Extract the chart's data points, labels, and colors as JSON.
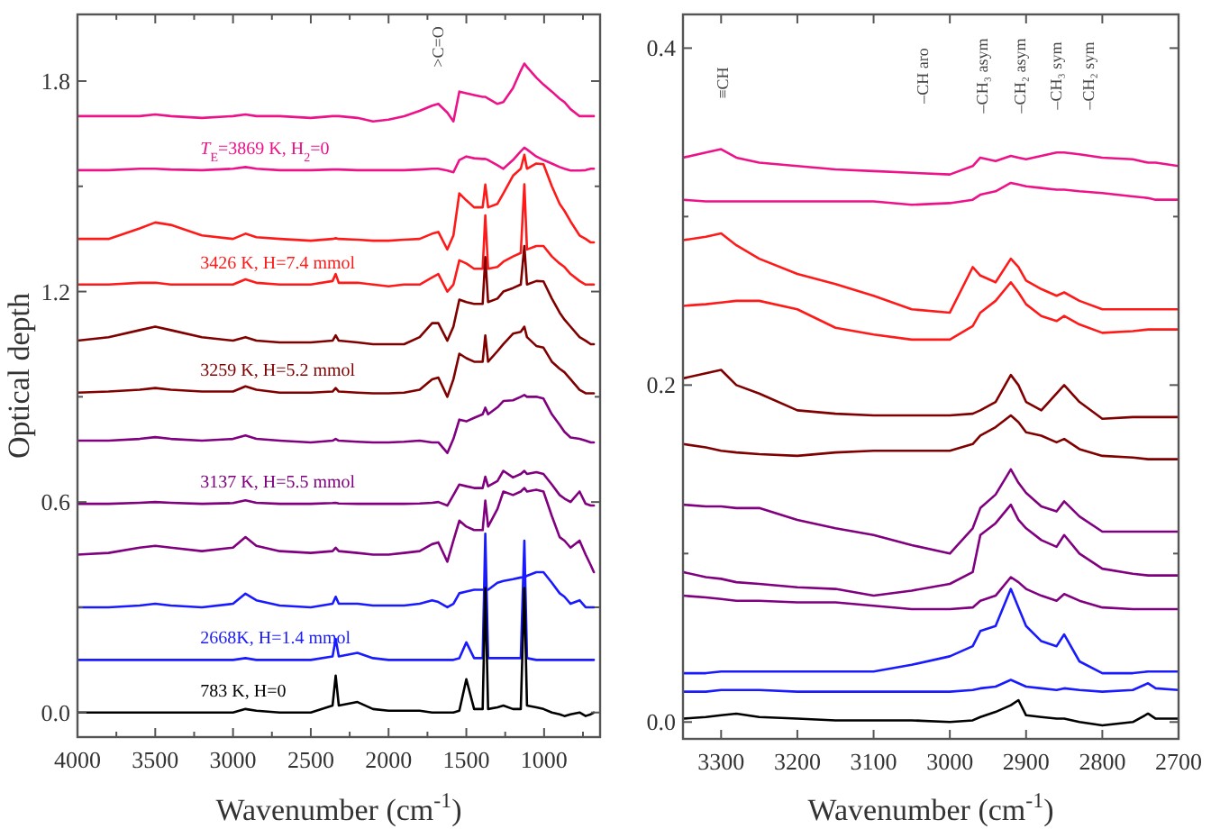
{
  "chart_data": [
    {
      "type": "line",
      "ylabel": "Optical depth",
      "xlabel": "Wavenumber (cm$^{-1}$)",
      "xlim": [
        4000,
        640
      ],
      "ylim": [
        -0.07,
        1.99
      ],
      "xticks": [
        4000,
        {
          "value": 3750,
          "label": null
        },
        3500,
        {
          "value": 3250,
          "label": null
        },
        3000,
        {
          "value": 2750,
          "label": null
        },
        2500,
        {
          "value": 2250,
          "label": null
        },
        2000,
        {
          "value": 1750,
          "label": null
        },
        1500,
        {
          "value": 1250,
          "label": null
        },
        1000,
        {
          "value": 750,
          "label": null
        }
      ],
      "yticks": [
        {
          "value": 0,
          "label": "0.0"
        },
        {
          "value": 0.3,
          "label": null
        },
        {
          "value": 0.6,
          "label": "0.6"
        },
        {
          "value": 0.9,
          "label": null
        },
        {
          "value": 1.2,
          "label": "1.2"
        },
        {
          "value": 1.5,
          "label": null
        },
        {
          "value": 1.8,
          "label": "1.8"
        }
      ],
      "annotations": [
        ">C=O"
      ],
      "x": [
        4000,
        3800,
        3600,
        3500,
        3400,
        3200,
        3000,
        2920,
        2850,
        2700,
        2500,
        2360,
        2340,
        2320,
        2200,
        2100,
        2000,
        1900,
        1800,
        1720,
        1680,
        1622,
        1583,
        1545,
        1500,
        1450,
        1395,
        1378,
        1360,
        1300,
        1262,
        1200,
        1150,
        1127,
        1110,
        1050,
        1004,
        950,
        900,
        869,
        830,
        772,
        733,
        700,
        680
      ],
      "series": [
        {
          "color": "#ee1289",
          "values": [
            1.7,
            1.7,
            1.7,
            1.705,
            1.7,
            1.695,
            1.7,
            1.705,
            1.7,
            1.7,
            1.695,
            1.7,
            1.7,
            1.7,
            1.695,
            1.685,
            1.69,
            1.7,
            1.715,
            1.73,
            1.735,
            1.71,
            1.685,
            1.77,
            1.765,
            1.76,
            1.755,
            1.755,
            1.75,
            1.735,
            1.74,
            1.78,
            1.83,
            1.85,
            1.84,
            1.81,
            1.79,
            1.77,
            1.75,
            1.74,
            1.72,
            1.7,
            1.7,
            1.7,
            1.7
          ]
        },
        {
          "name": "T$_{E}$=3869 K, H$_{2}$=0",
          "color": "#ee1289",
          "values": [
            1.546,
            1.546,
            1.55,
            1.55,
            1.548,
            1.546,
            1.55,
            1.555,
            1.55,
            1.546,
            1.546,
            1.548,
            1.548,
            1.548,
            1.546,
            1.546,
            1.546,
            1.546,
            1.548,
            1.55,
            1.55,
            1.545,
            1.54,
            1.575,
            1.585,
            1.58,
            1.578,
            1.578,
            1.575,
            1.56,
            1.55,
            1.575,
            1.6,
            1.61,
            1.605,
            1.585,
            1.575,
            1.565,
            1.555,
            1.55,
            1.545,
            1.545,
            1.546,
            1.55,
            1.55
          ]
        },
        {
          "color": "#ff1a1a",
          "values": [
            1.35,
            1.35,
            1.38,
            1.397,
            1.39,
            1.36,
            1.35,
            1.365,
            1.355,
            1.35,
            1.345,
            1.35,
            1.352,
            1.35,
            1.348,
            1.345,
            1.345,
            1.348,
            1.35,
            1.365,
            1.37,
            1.32,
            1.36,
            1.48,
            1.46,
            1.44,
            1.44,
            1.505,
            1.44,
            1.45,
            1.48,
            1.53,
            1.55,
            1.59,
            1.55,
            1.565,
            1.563,
            1.5,
            1.45,
            1.43,
            1.4,
            1.36,
            1.35,
            1.34,
            1.34
          ]
        },
        {
          "name": "3426 K, H=7.4 mmol",
          "color": "#ff1a1a",
          "values": [
            1.22,
            1.22,
            1.225,
            1.225,
            1.22,
            1.22,
            1.22,
            1.235,
            1.225,
            1.22,
            1.22,
            1.23,
            1.25,
            1.225,
            1.225,
            1.22,
            1.215,
            1.22,
            1.22,
            1.24,
            1.25,
            1.2,
            1.22,
            1.289,
            1.28,
            1.265,
            1.265,
            1.417,
            1.265,
            1.27,
            1.285,
            1.3,
            1.31,
            1.506,
            1.32,
            1.33,
            1.33,
            1.3,
            1.28,
            1.27,
            1.25,
            1.23,
            1.22,
            1.22,
            1.22
          ]
        },
        {
          "color": "#800000",
          "values": [
            1.06,
            1.07,
            1.09,
            1.1,
            1.09,
            1.07,
            1.06,
            1.07,
            1.06,
            1.055,
            1.055,
            1.06,
            1.075,
            1.06,
            1.055,
            1.05,
            1.05,
            1.05,
            1.07,
            1.11,
            1.11,
            1.06,
            1.1,
            1.177,
            1.17,
            1.165,
            1.165,
            1.298,
            1.17,
            1.18,
            1.2,
            1.21,
            1.22,
            1.33,
            1.22,
            1.23,
            1.229,
            1.18,
            1.14,
            1.12,
            1.1,
            1.07,
            1.06,
            1.05,
            1.05
          ]
        },
        {
          "name": "3259 K, H=5.2 mmol",
          "color": "#800000",
          "values": [
            0.912,
            0.915,
            0.92,
            0.925,
            0.92,
            0.915,
            0.915,
            0.93,
            0.92,
            0.912,
            0.912,
            0.915,
            0.925,
            0.915,
            0.912,
            0.91,
            0.91,
            0.912,
            0.92,
            0.95,
            0.955,
            0.9,
            0.95,
            1.023,
            1.01,
            1.0,
            1.0,
            1.075,
            1.0,
            1.03,
            1.05,
            1.08,
            1.085,
            1.1,
            1.07,
            1.045,
            1.04,
            1.0,
            0.98,
            0.97,
            0.95,
            0.92,
            0.91,
            0.91,
            0.91
          ]
        },
        {
          "color": "#800080",
          "values": [
            0.775,
            0.775,
            0.78,
            0.785,
            0.78,
            0.775,
            0.78,
            0.79,
            0.78,
            0.775,
            0.77,
            0.775,
            0.78,
            0.775,
            0.772,
            0.77,
            0.77,
            0.772,
            0.775,
            0.77,
            0.77,
            0.74,
            0.78,
            0.835,
            0.83,
            0.84,
            0.85,
            0.869,
            0.85,
            0.87,
            0.888,
            0.89,
            0.9,
            0.905,
            0.9,
            0.9,
            0.895,
            0.85,
            0.82,
            0.8,
            0.784,
            0.78,
            0.775,
            0.77,
            0.77
          ]
        },
        {
          "name": "3137 K, H=5.5 mmol",
          "color": "#800080",
          "values": [
            0.595,
            0.595,
            0.598,
            0.6,
            0.598,
            0.595,
            0.597,
            0.605,
            0.598,
            0.595,
            0.595,
            0.597,
            0.598,
            0.596,
            0.595,
            0.595,
            0.595,
            0.595,
            0.596,
            0.598,
            0.6,
            0.59,
            0.62,
            0.65,
            0.645,
            0.64,
            0.64,
            0.672,
            0.645,
            0.66,
            0.689,
            0.67,
            0.68,
            0.689,
            0.68,
            0.685,
            0.68,
            0.65,
            0.62,
            0.61,
            0.6,
            0.63,
            0.595,
            0.59,
            0.59
          ]
        },
        {
          "color": "#800080",
          "values": [
            0.45,
            0.455,
            0.47,
            0.475,
            0.47,
            0.46,
            0.47,
            0.5,
            0.475,
            0.46,
            0.455,
            0.46,
            0.47,
            0.46,
            0.455,
            0.45,
            0.45,
            0.455,
            0.46,
            0.48,
            0.485,
            0.43,
            0.49,
            0.547,
            0.53,
            0.52,
            0.52,
            0.604,
            0.53,
            0.58,
            0.63,
            0.62,
            0.63,
            0.64,
            0.63,
            0.635,
            0.63,
            0.56,
            0.5,
            0.49,
            0.47,
            0.49,
            0.45,
            0.42,
            0.4
          ]
        },
        {
          "color": "#1a1aff",
          "values": [
            0.3,
            0.3,
            0.305,
            0.31,
            0.305,
            0.3,
            0.31,
            0.339,
            0.32,
            0.305,
            0.3,
            0.31,
            0.33,
            0.31,
            0.31,
            0.305,
            0.305,
            0.305,
            0.31,
            0.32,
            0.315,
            0.3,
            0.31,
            0.34,
            0.345,
            0.35,
            0.35,
            0.35,
            0.35,
            0.37,
            0.375,
            0.38,
            0.385,
            0.385,
            0.39,
            0.4,
            0.4,
            0.37,
            0.34,
            0.33,
            0.31,
            0.32,
            0.3,
            0.3,
            0.3
          ]
        },
        {
          "name": "2668K, H=1.4 mmol",
          "color": "#1a1aff",
          "values": [
            0.15,
            0.15,
            0.15,
            0.15,
            0.15,
            0.15,
            0.15,
            0.155,
            0.15,
            0.15,
            0.15,
            0.16,
            0.21,
            0.16,
            0.17,
            0.155,
            0.15,
            0.15,
            0.15,
            0.15,
            0.15,
            0.15,
            0.15,
            0.155,
            0.2,
            0.155,
            0.155,
            0.51,
            0.155,
            0.155,
            0.155,
            0.155,
            0.155,
            0.49,
            0.155,
            0.15,
            0.15,
            0.15,
            0.15,
            0.15,
            0.15,
            0.15,
            0.15,
            0.15,
            0.15
          ]
        },
        {
          "name": "783 K, H=0",
          "color": "#000000",
          "values": [
            0,
            0,
            0,
            0,
            0,
            0,
            0,
            0.01,
            0.005,
            0,
            0,
            0.02,
            0.105,
            0.02,
            0.03,
            0.01,
            0.005,
            0.005,
            0.005,
            0.0,
            0.0,
            0.0,
            0.0,
            0.005,
            0.095,
            0.01,
            0.01,
            0.355,
            0.01,
            0.015,
            0.02,
            0.01,
            0.01,
            0.355,
            0.02,
            0.015,
            0.01,
            0.0,
            -0.005,
            -0.01,
            -0.005,
            0.0,
            -0.01,
            -0.005,
            0
          ]
        }
      ]
    },
    {
      "type": "line",
      "xlabel": "Wavenumber (cm$^{-1}$)",
      "xlim": [
        3350,
        2700
      ],
      "ylim": [
        -0.01,
        0.42
      ],
      "xticks": [
        3300,
        3200,
        3100,
        3000,
        2900,
        2800,
        2700
      ],
      "yticks": [
        {
          "value": 0,
          "label": "0.0"
        },
        {
          "value": 0.1,
          "label": null
        },
        {
          "value": 0.2,
          "label": "0.2"
        },
        {
          "value": 0.3,
          "label": null
        },
        {
          "value": 0.4,
          "label": "0.4"
        }
      ],
      "annotations": [
        "≡CH",
        "–CH aro",
        "–CH₃ asym",
        "–CH₂ asym",
        "–CH₃ sym",
        "–CH₂ sym"
      ],
      "x": [
        3350,
        3320,
        3300,
        3280,
        3250,
        3200,
        3150,
        3100,
        3050,
        3000,
        2970,
        2960,
        2940,
        2920,
        2910,
        2900,
        2880,
        2860,
        2850,
        2830,
        2800,
        2760,
        2740,
        2730,
        2700
      ],
      "series": [
        {
          "color": "#ee1289",
          "values": [
            0.335,
            0.338,
            0.34,
            0.335,
            0.332,
            0.33,
            0.328,
            0.327,
            0.326,
            0.325,
            0.33,
            0.335,
            0.333,
            0.336,
            0.335,
            0.334,
            0.336,
            0.338,
            0.338,
            0.337,
            0.335,
            0.334,
            0.332,
            0.332,
            0.33
          ]
        },
        {
          "color": "#ee1289",
          "values": [
            0.31,
            0.309,
            0.309,
            0.309,
            0.309,
            0.309,
            0.309,
            0.309,
            0.307,
            0.308,
            0.31,
            0.313,
            0.315,
            0.32,
            0.319,
            0.318,
            0.317,
            0.316,
            0.316,
            0.315,
            0.314,
            0.312,
            0.311,
            0.31,
            0.31
          ]
        },
        {
          "color": "#ff1a1a",
          "values": [
            0.286,
            0.288,
            0.29,
            0.283,
            0.275,
            0.266,
            0.26,
            0.253,
            0.245,
            0.243,
            0.27,
            0.265,
            0.261,
            0.275,
            0.27,
            0.262,
            0.257,
            0.253,
            0.255,
            0.25,
            0.245,
            0.245,
            0.245,
            0.245,
            0.245
          ]
        },
        {
          "color": "#ff1a1a",
          "values": [
            0.247,
            0.248,
            0.249,
            0.25,
            0.25,
            0.245,
            0.234,
            0.23,
            0.227,
            0.227,
            0.235,
            0.243,
            0.25,
            0.261,
            0.255,
            0.248,
            0.241,
            0.238,
            0.241,
            0.236,
            0.231,
            0.232,
            0.233,
            0.233,
            0.233
          ]
        },
        {
          "color": "#800000",
          "values": [
            0.204,
            0.207,
            0.209,
            0.2,
            0.195,
            0.185,
            0.183,
            0.182,
            0.182,
            0.182,
            0.183,
            0.185,
            0.19,
            0.206,
            0.2,
            0.19,
            0.185,
            0.195,
            0.2,
            0.19,
            0.18,
            0.181,
            0.181,
            0.181,
            0.181
          ]
        },
        {
          "color": "#800000",
          "values": [
            0.165,
            0.163,
            0.161,
            0.16,
            0.159,
            0.158,
            0.16,
            0.161,
            0.161,
            0.161,
            0.165,
            0.17,
            0.175,
            0.182,
            0.178,
            0.172,
            0.17,
            0.166,
            0.168,
            0.162,
            0.158,
            0.157,
            0.156,
            0.156,
            0.156
          ]
        },
        {
          "color": "#800080",
          "values": [
            0.129,
            0.128,
            0.128,
            0.127,
            0.127,
            0.12,
            0.115,
            0.111,
            0.105,
            0.1,
            0.115,
            0.127,
            0.135,
            0.15,
            0.142,
            0.136,
            0.128,
            0.125,
            0.131,
            0.122,
            0.113,
            0.113,
            0.113,
            0.113,
            0.113
          ]
        },
        {
          "color": "#800080",
          "values": [
            0.089,
            0.086,
            0.085,
            0.083,
            0.082,
            0.08,
            0.079,
            0.075,
            0.078,
            0.082,
            0.089,
            0.111,
            0.118,
            0.129,
            0.12,
            0.115,
            0.108,
            0.104,
            0.111,
            0.1,
            0.091,
            0.088,
            0.087,
            0.087,
            0.087
          ]
        },
        {
          "color": "#800080",
          "values": [
            0.075,
            0.074,
            0.073,
            0.072,
            0.072,
            0.071,
            0.071,
            0.069,
            0.067,
            0.067,
            0.068,
            0.072,
            0.075,
            0.086,
            0.083,
            0.079,
            0.075,
            0.072,
            0.076,
            0.072,
            0.068,
            0.067,
            0.067,
            0.067,
            0.067
          ]
        },
        {
          "color": "#1a1aff",
          "values": [
            0.029,
            0.029,
            0.03,
            0.03,
            0.03,
            0.03,
            0.03,
            0.03,
            0.034,
            0.039,
            0.045,
            0.054,
            0.057,
            0.079,
            0.068,
            0.057,
            0.048,
            0.045,
            0.052,
            0.036,
            0.029,
            0.029,
            0.03,
            0.03,
            0.03
          ]
        },
        {
          "color": "#1a1aff",
          "values": [
            0.018,
            0.018,
            0.019,
            0.019,
            0.019,
            0.018,
            0.018,
            0.018,
            0.018,
            0.018,
            0.019,
            0.02,
            0.021,
            0.025,
            0.023,
            0.021,
            0.02,
            0.019,
            0.02,
            0.019,
            0.018,
            0.019,
            0.023,
            0.02,
            0.019
          ]
        },
        {
          "color": "#000000",
          "values": [
            0.002,
            0.003,
            0.004,
            0.005,
            0.003,
            0.002,
            0.001,
            0.001,
            0.001,
            0.0,
            0.001,
            0.003,
            0.006,
            0.01,
            0.013,
            0.004,
            0.003,
            0.002,
            0.002,
            0.0,
            -0.002,
            0.0,
            0.005,
            0.002,
            0.002
          ]
        }
      ]
    }
  ]
}
